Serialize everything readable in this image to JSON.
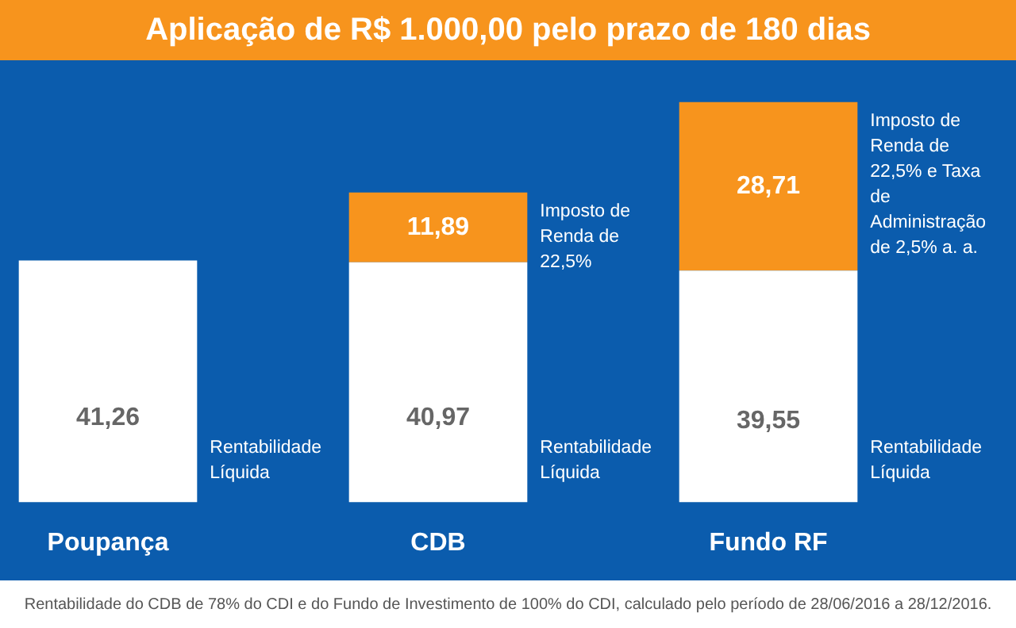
{
  "chart_data": {
    "type": "bar",
    "title": "Aplicação de R$ 1.000,00 pelo prazo de 180 dias",
    "categories": [
      "Poupança",
      "CDB",
      "Fundo RF"
    ],
    "stacked": true,
    "series": [
      {
        "color": "#ffffff",
        "values": [
          41.26,
          40.97,
          39.55
        ],
        "value_labels": [
          "41,26",
          "40,97",
          "39,55"
        ]
      },
      {
        "color": "#f7941d",
        "values": [
          null,
          11.89,
          28.71
        ],
        "value_labels": [
          null,
          "11,89",
          "28,71"
        ]
      }
    ],
    "annotations": [
      "Rentabilidade Líquida",
      "Rentabilidade Líquida",
      "Rentabilidade Líquida",
      "Imposto de Renda de 22,5%",
      "Imposto de Renda de 22,5% e Taxa de Administração de 2,5% a. a.",
      "Rentabilidade do CDB de 78% do CDI e do Fundo de Investimento de 100% do CDI, calculado pelo período de 28/06/2016 a 28/12/2016."
    ]
  }
}
